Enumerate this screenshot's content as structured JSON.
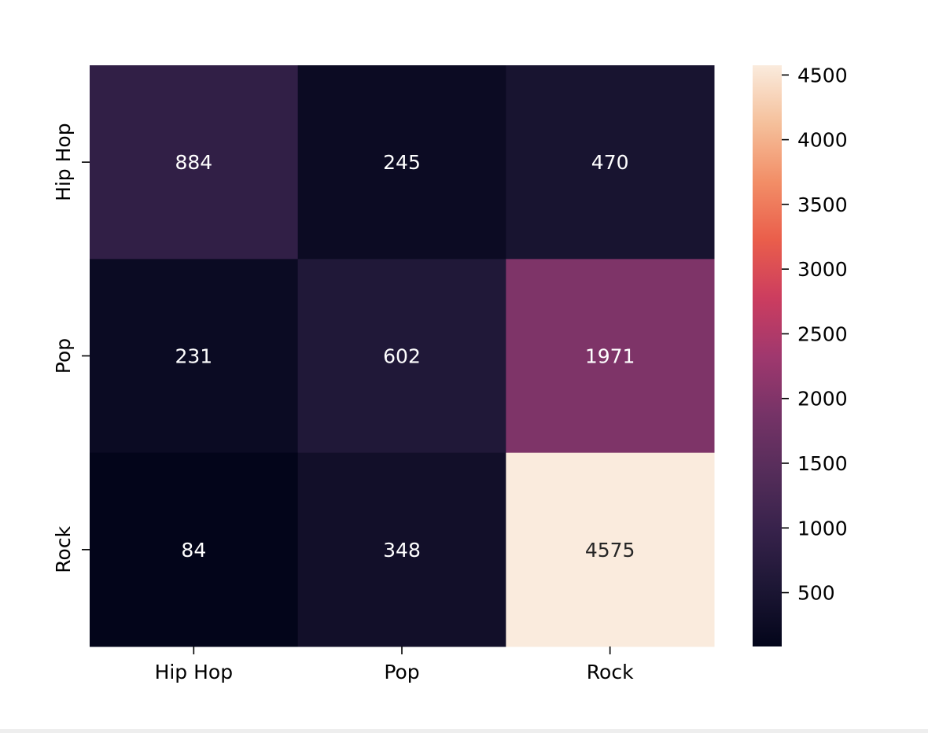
{
  "chart_data": {
    "type": "heatmap",
    "rows": [
      "Hip Hop",
      "Pop",
      "Rock"
    ],
    "columns": [
      "Hip Hop",
      "Pop",
      "Rock"
    ],
    "values": [
      [
        884,
        245,
        470
      ],
      [
        231,
        602,
        1971
      ],
      [
        84,
        348,
        4575
      ]
    ],
    "value_range": [
      84,
      4575
    ],
    "colormap": "rocket",
    "colorbar": {
      "ticks": [
        500,
        1000,
        1500,
        2000,
        2500,
        3000,
        3500,
        4000,
        4500
      ],
      "tick_labels": [
        "500",
        "1000",
        "1500",
        "2000",
        "2500",
        "3000",
        "3500",
        "4000",
        "4500"
      ],
      "placement": "right"
    },
    "title": "",
    "xlabel": "",
    "ylabel": "",
    "annotations": true,
    "grid": false
  }
}
